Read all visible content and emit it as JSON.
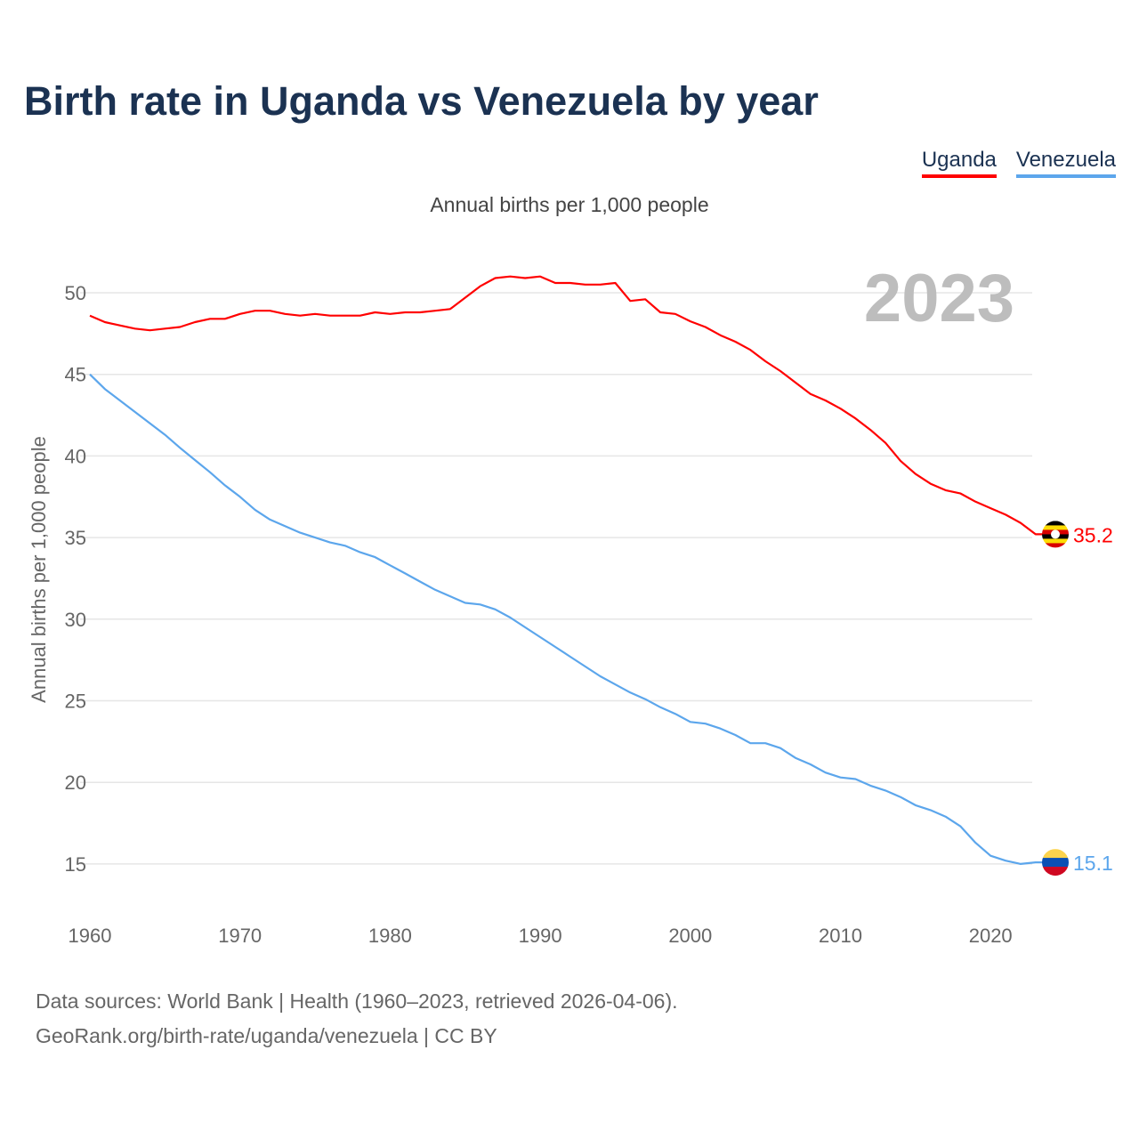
{
  "chart_data": {
    "type": "line",
    "title": "Birth rate in Uganda vs Venezuela by year",
    "subtitle": "Annual births per 1,000 people",
    "ylabel": "Annual births per 1,000 people",
    "xlabel": "",
    "year_watermark": "2023",
    "xlim": [
      1960,
      2023
    ],
    "ylim": [
      13,
      52
    ],
    "x_ticks": [
      1960,
      1970,
      1980,
      1990,
      2000,
      2010,
      2020
    ],
    "y_ticks": [
      15,
      20,
      25,
      30,
      35,
      40,
      45,
      50
    ],
    "grid": true,
    "legend_position": "top-right",
    "x": [
      1960,
      1961,
      1962,
      1963,
      1964,
      1965,
      1966,
      1967,
      1968,
      1969,
      1970,
      1971,
      1972,
      1973,
      1974,
      1975,
      1976,
      1977,
      1978,
      1979,
      1980,
      1981,
      1982,
      1983,
      1984,
      1985,
      1986,
      1987,
      1988,
      1989,
      1990,
      1991,
      1992,
      1993,
      1994,
      1995,
      1996,
      1997,
      1998,
      1999,
      2000,
      2001,
      2002,
      2003,
      2004,
      2005,
      2006,
      2007,
      2008,
      2009,
      2010,
      2011,
      2012,
      2013,
      2014,
      2015,
      2016,
      2017,
      2018,
      2019,
      2020,
      2021,
      2022,
      2023
    ],
    "series": [
      {
        "name": "Uganda",
        "color": "#ff0000",
        "end_label": "35.2",
        "flag": "uganda-flag",
        "values": [
          48.6,
          48.2,
          48.0,
          47.8,
          47.7,
          47.8,
          47.9,
          48.2,
          48.4,
          48.4,
          48.7,
          48.9,
          48.9,
          48.7,
          48.6,
          48.7,
          48.6,
          48.6,
          48.6,
          48.8,
          48.7,
          48.8,
          48.8,
          48.9,
          49.0,
          49.7,
          50.4,
          50.9,
          51.0,
          50.9,
          51.0,
          50.6,
          50.6,
          50.5,
          50.5,
          50.6,
          49.5,
          49.6,
          48.8,
          48.7,
          48.25,
          47.9,
          47.4,
          47.0,
          46.5,
          45.8,
          45.2,
          44.5,
          43.8,
          43.4,
          42.9,
          42.3,
          41.6,
          40.8,
          39.7,
          38.9,
          38.3,
          37.9,
          37.7,
          37.2,
          36.8,
          36.4,
          35.9,
          35.2
        ]
      },
      {
        "name": "Venezuela",
        "color": "#5ca6ec",
        "end_label": "15.1",
        "flag": "venezuela-flag",
        "values": [
          45.0,
          44.1,
          43.4,
          42.7,
          42.0,
          41.3,
          40.5,
          39.75,
          39.0,
          38.2,
          37.5,
          36.7,
          36.1,
          35.7,
          35.3,
          35.0,
          34.7,
          34.5,
          34.1,
          33.8,
          33.3,
          32.8,
          32.3,
          31.8,
          31.4,
          31.0,
          30.9,
          30.6,
          30.1,
          29.5,
          28.9,
          28.3,
          27.7,
          27.1,
          26.5,
          26.0,
          25.5,
          25.1,
          24.6,
          24.2,
          23.7,
          23.6,
          23.3,
          22.9,
          22.4,
          22.4,
          22.1,
          21.5,
          21.1,
          20.6,
          20.3,
          20.2,
          19.8,
          19.5,
          19.1,
          18.6,
          18.3,
          17.9,
          17.3,
          16.3,
          15.5,
          15.2,
          15.0,
          15.1
        ]
      }
    ]
  },
  "source": {
    "line1": "Data sources: World Bank | Health (1960–2023, retrieved 2026-04-06).",
    "line2": "GeoRank.org/birth-rate/uganda/venezuela | CC BY"
  }
}
